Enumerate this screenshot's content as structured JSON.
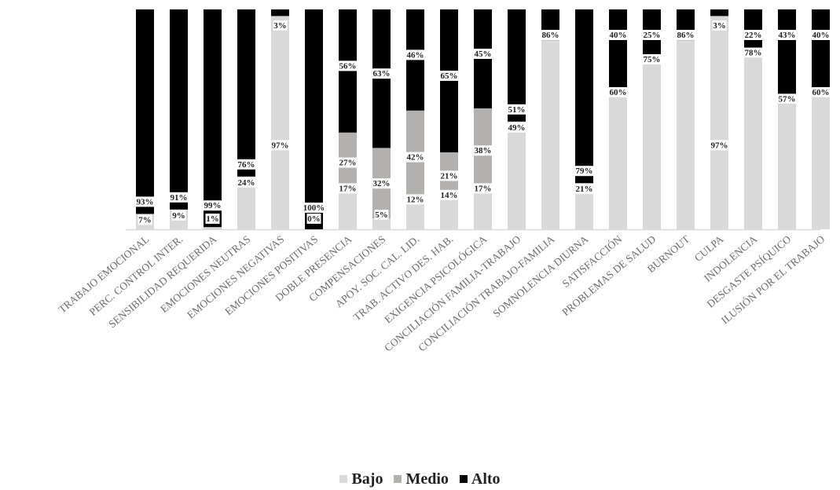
{
  "chart_data": {
    "type": "bar",
    "stacked": true,
    "categories": [
      "TRABAJO EMOCIONAL",
      "PERC. CONTROL INTER.",
      "SENSIBILIDAD REQUERIDA",
      "EMOCIONES NEUTRAS",
      "EMOCIONES NEGATIVAS",
      "EMOCIONES POSITIVAS",
      "DOBLE PRESENCIA",
      "COMPENSACIONES",
      "APOY. SOC. CAL. LID.",
      "TRAB. ACTIVO DES. HAB.",
      "EXIGENCIA PSICOLÓGICA",
      "CONCILIACIÓN FAMILIA-TRABAJO",
      "CONCILIACIÓN TRABAJO-FAMILIA",
      "SOMNOLENCIA DIURNA",
      "SATISFACCIÓN",
      "PROBLEMAS DE SALUD",
      "BURNOUT",
      "CULPA",
      "INDOLENCIA",
      "DESGASTE PSÍQUICO",
      "ILUSIÓN POR EL TRABAJO"
    ],
    "series": [
      {
        "name": "Bajo",
        "color": "#d9d9d9",
        "values": [
          7,
          9,
          1,
          24,
          97,
          0,
          17,
          5,
          12,
          14,
          17,
          49,
          86,
          21,
          60,
          75,
          86,
          97,
          78,
          57,
          60
        ]
      },
      {
        "name": "Medio",
        "color": "#b3b0b0",
        "values": [
          0,
          0,
          0,
          0,
          0,
          0,
          27,
          32,
          42,
          21,
          38,
          0,
          0,
          0,
          0,
          0,
          0,
          0,
          0,
          0,
          0
        ]
      },
      {
        "name": "Alto",
        "color": "#000000",
        "values": [
          93,
          91,
          99,
          76,
          3,
          100,
          56,
          63,
          46,
          65,
          45,
          51,
          14,
          79,
          40,
          25,
          14,
          3,
          22,
          43,
          40
        ]
      }
    ],
    "bar_labels": {
      "low": [
        "7%",
        "9%",
        "1%",
        "24%",
        "97%",
        "0%",
        "17%",
        "5%",
        "12%",
        "14%",
        "17%",
        "49%",
        "86%",
        "21%",
        "60%",
        "75%",
        "86%",
        "97%",
        "78%",
        "57%",
        "60%"
      ],
      "mid": [
        "",
        "",
        "",
        "",
        "",
        "",
        "27%",
        "32%",
        "42%",
        "21%",
        "38%",
        "",
        "",
        "",
        "",
        "",
        "",
        "",
        "",
        "",
        ""
      ],
      "high": [
        "93%",
        "91%",
        "99%",
        "76%",
        "3%",
        "100%",
        "56%",
        "63%",
        "46%",
        "65%",
        "45%",
        "51%",
        "14%",
        "79%",
        "40%",
        "25%",
        "14%",
        "3%",
        "22%",
        "43%",
        "40%"
      ]
    },
    "ylim": [
      0,
      100
    ],
    "grid": false,
    "legend": "bottom"
  },
  "legend": {
    "bajo": "Bajo",
    "medio": "Medio",
    "alto": "Alto"
  }
}
